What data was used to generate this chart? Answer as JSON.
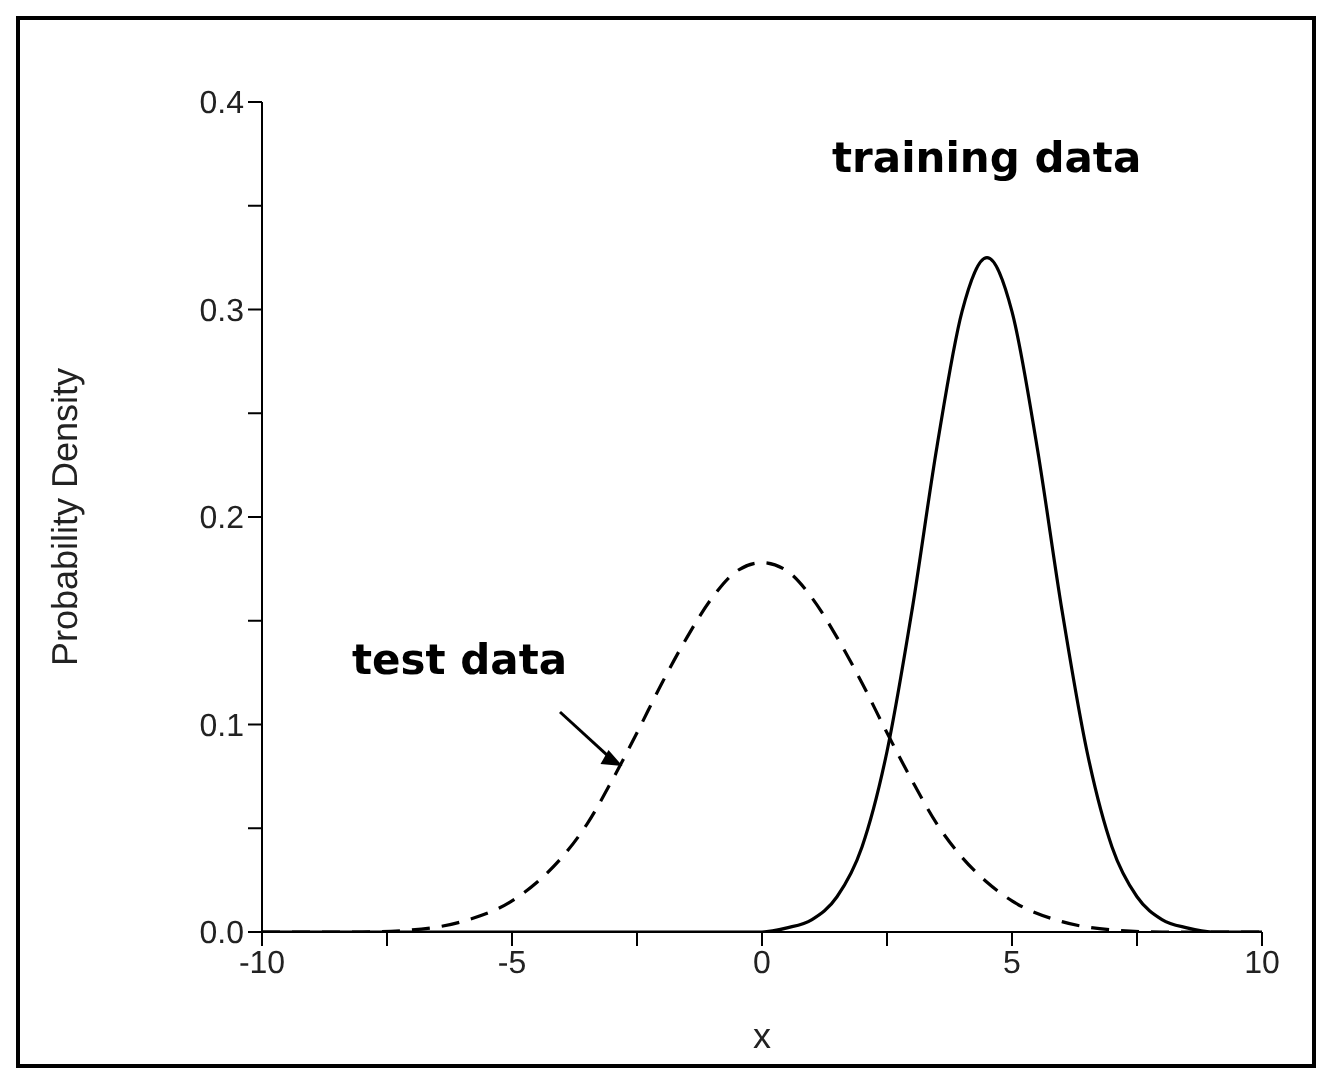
{
  "chart_data": {
    "type": "line",
    "xlabel": "x",
    "ylabel": "Probability Density",
    "xlim": [
      -10,
      10
    ],
    "ylim": [
      0,
      0.4
    ],
    "xticks": [
      -10,
      {
        "value": -7.5,
        "label": null
      },
      -5,
      {
        "value": -2.5,
        "label": null
      },
      0,
      {
        "value": 2.5,
        "label": null
      },
      5,
      {
        "value": 7.5,
        "label": null
      },
      10
    ],
    "yticks": [
      {
        "value": 0,
        "label": "0.0"
      },
      {
        "value": 0.05,
        "label": null
      },
      0.1,
      {
        "value": 0.15,
        "label": null
      },
      0.2,
      {
        "value": 0.25,
        "label": null
      },
      0.3,
      {
        "value": 0.35,
        "label": null
      },
      0.4
    ],
    "marker": "none",
    "series": [
      {
        "name": "test data",
        "color": "#000000",
        "line_style": "dashed",
        "x": [
          -10,
          -8,
          -7,
          -6,
          -5,
          -4.5,
          -4,
          -3.5,
          -3,
          -2.5,
          -2,
          -1.5,
          -1,
          -0.5,
          0,
          0.5,
          1,
          1.5,
          2,
          2.5,
          3,
          3.5,
          4,
          4.5,
          5,
          6,
          7,
          8,
          10
        ],
        "values": [
          0,
          0,
          0.001,
          0.005,
          0.015,
          0.024,
          0.036,
          0.052,
          0.073,
          0.096,
          0.12,
          0.142,
          0.161,
          0.174,
          0.178,
          0.174,
          0.161,
          0.142,
          0.12,
          0.096,
          0.073,
          0.052,
          0.036,
          0.024,
          0.015,
          0.005,
          0.001,
          0,
          0
        ]
      },
      {
        "name": "training data",
        "color": "#000000",
        "line_style": "solid",
        "x": [
          -10,
          0,
          0.5,
          1,
          1.5,
          2,
          2.5,
          3,
          3.5,
          4,
          4.5,
          5,
          5.5,
          6,
          6.5,
          7,
          7.5,
          8,
          8.5,
          9,
          10
        ],
        "values": [
          0,
          0,
          0.002,
          0.006,
          0.017,
          0.041,
          0.087,
          0.155,
          0.234,
          0.299,
          0.325,
          0.299,
          0.234,
          0.155,
          0.087,
          0.041,
          0.017,
          0.006,
          0.002,
          0,
          0
        ]
      }
    ]
  }
}
